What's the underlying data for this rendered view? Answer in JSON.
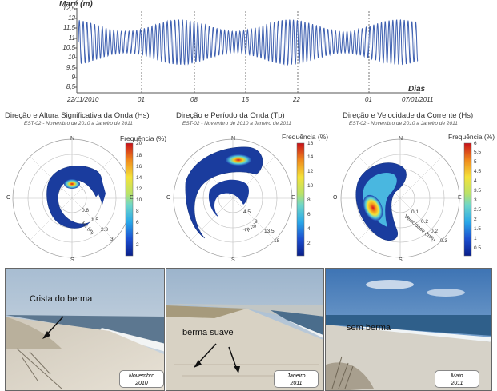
{
  "tide": {
    "title": "Maré (m)",
    "xlabel": "Dias",
    "yticks": [
      "12,5",
      "12",
      "11,5",
      "11",
      "10,5",
      "10",
      "9,5",
      "9",
      "8,5"
    ],
    "xticks": [
      "22/11/2010",
      "01",
      "08",
      "15",
      "22",
      "01",
      "07/01/2011"
    ]
  },
  "roses": [
    {
      "title": "Direção e Altura Significativa da Onda (Hs)",
      "subtitle": "EST-02 - Novembro de 2010 a Janeiro de 2011",
      "cbar_title": "Frequência (%)",
      "cbar_ticks": [
        "20",
        "18",
        "16",
        "14",
        "12",
        "10",
        "8",
        "6",
        "4",
        "2"
      ],
      "radial_label": "Hs (m)",
      "radial_ticks": [
        "0.8",
        "1.5",
        "2.3",
        "3"
      ],
      "dirs": {
        "n": "N",
        "e": "E",
        "s": "S",
        "w": "O"
      }
    },
    {
      "title": "Direção e Período da Onda (Tp)",
      "subtitle": "EST-02 - Novembro de 2010 a Janeiro de 2011",
      "cbar_title": "Frequência (%)",
      "cbar_ticks": [
        "16",
        "14",
        "12",
        "10",
        "8",
        "6",
        "4",
        "2"
      ],
      "radial_label": "Tp (s)",
      "radial_ticks": [
        "4.5",
        "9",
        "13.5",
        "18"
      ],
      "dirs": {
        "n": "N",
        "e": "E",
        "s": "S",
        "w": "O"
      }
    },
    {
      "title": "Direção e Velocidade da Corrente (Hs)",
      "subtitle": "EST-02 - Novembro de 2010 a Janeiro de 2011",
      "cbar_title": "Frequência (%)",
      "cbar_ticks": [
        "6",
        "5.5",
        "5",
        "4.5",
        "4",
        "3.5",
        "3",
        "2.5",
        "2",
        "1.5",
        "1",
        "0.5"
      ],
      "radial_label": "Velocidade (m/s)",
      "radial_ticks": [
        "0.1",
        "0.2",
        "0.2",
        "0.3"
      ],
      "dirs": {
        "n": "N",
        "e": "E",
        "s": "S",
        "w": "O"
      }
    }
  ],
  "photos": [
    {
      "caption": "Crista do berma",
      "badge_month": "Novembro",
      "badge_year": "2010"
    },
    {
      "caption": "berma suave",
      "badge_month": "Janeiro",
      "badge_year": "2011"
    },
    {
      "caption": "sem berma",
      "badge_month": "Maio",
      "badge_year": "2011"
    }
  ],
  "chart_data": [
    {
      "type": "line",
      "title": "Maré (m)",
      "xlabel": "Dias",
      "ylabel": "Maré (m)",
      "ylim": [
        8.5,
        12.5
      ],
      "x_range": [
        "22/11/2010",
        "07/01/2011"
      ],
      "x_ticks": [
        "22/11/2010",
        "01",
        "08",
        "15",
        "22",
        "01",
        "07/01/2011"
      ],
      "description_values": {
        "mean": 10.8,
        "spring_high": 11.9,
        "spring_low": 9.6,
        "neap_high": 11.3,
        "neap_low": 10.2
      },
      "grid": "dashed vertical at weekly ticks"
    },
    {
      "type": "heatmap",
      "title": "Direção e Altura Significativa da Onda (Hs)",
      "colorbar": [
        0,
        20
      ],
      "peak_direction": "N",
      "peak_value": 20
    },
    {
      "type": "heatmap",
      "title": "Direção e Período da Onda (Tp)",
      "colorbar": [
        0,
        16
      ],
      "peak_direction": "N",
      "peak_value": 16
    },
    {
      "type": "heatmap",
      "title": "Direção e Velocidade da Corrente (Hs)",
      "colorbar": [
        0.5,
        6
      ],
      "peak_direction": "SW",
      "peak_value": 6
    }
  ]
}
